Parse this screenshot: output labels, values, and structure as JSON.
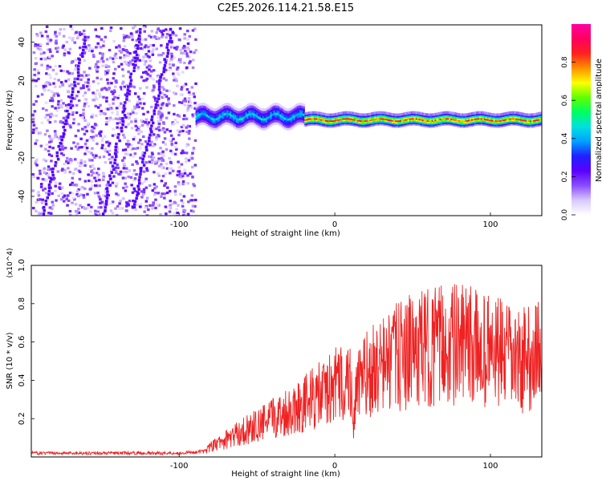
{
  "figure_title": "C2E5.2026.114.21.58.E15",
  "chart_data": [
    {
      "type": "heatmap",
      "title": "C2E5.2026.114.21.58.E15",
      "xlabel": "Height of straight line (km)",
      "ylabel": "Frequency (Hz)",
      "xlim": [
        -195,
        133
      ],
      "ylim": [
        -50,
        49
      ],
      "x_ticks": [
        -100,
        0,
        100
      ],
      "y_ticks": [
        -40,
        -20,
        0,
        20,
        40
      ],
      "colorbar": {
        "label": "Normalized spectral amplitude",
        "range": [
          0,
          1
        ],
        "ticks": [
          0.0,
          0.2,
          0.4,
          0.6,
          0.8
        ],
        "colors": [
          "#ffffff",
          "#d8c8ff",
          "#8a4cff",
          "#5a00ff",
          "#2020ff",
          "#00a0ff",
          "#00e0e0",
          "#00ff60",
          "#60ff00",
          "#ffff00",
          "#ff9000",
          "#ff2020",
          "#ff0060",
          "#ff00a0"
        ]
      },
      "regions": [
        {
          "name": "noise",
          "x_range": [
            -195,
            -90
          ],
          "freq_range": [
            -50,
            49
          ],
          "amplitude": 0.15
        },
        {
          "name": "transition",
          "x_range": [
            -90,
            -20
          ],
          "center_freq": 1.5,
          "half_width_hz": 5,
          "amplitude": 0.5
        },
        {
          "name": "signal",
          "x_range": [
            -20,
            133
          ],
          "center_freq": 0,
          "half_width_hz": 3,
          "amplitude": 0.95
        }
      ]
    },
    {
      "type": "line",
      "xlabel": "Height of straight line (km)",
      "ylabel": "SNR (10 * v/v)",
      "y_multiplier": "(x10^4)",
      "xlim": [
        -195,
        133
      ],
      "ylim": [
        0,
        1.0
      ],
      "x_ticks": [
        -100,
        0,
        100
      ],
      "y_ticks": [
        0.2,
        0.4,
        0.6,
        0.8,
        1.0
      ],
      "series": [
        {
          "name": "SNR",
          "color": "#ee2222",
          "x": [
            -195,
            -180,
            -160,
            -140,
            -120,
            -100,
            -90,
            -85,
            -80,
            -75,
            -70,
            -65,
            -60,
            -55,
            -50,
            -45,
            -40,
            -35,
            -30,
            -25,
            -20,
            -15,
            -10,
            -5,
            0,
            5,
            10,
            12,
            15,
            20,
            25,
            30,
            35,
            40,
            45,
            50,
            55,
            60,
            65,
            70,
            75,
            80,
            85,
            90,
            95,
            100,
            105,
            110,
            115,
            120,
            125,
            130,
            133
          ],
          "values": [
            0.02,
            0.02,
            0.02,
            0.02,
            0.02,
            0.02,
            0.025,
            0.03,
            0.05,
            0.07,
            0.09,
            0.11,
            0.13,
            0.15,
            0.16,
            0.18,
            0.2,
            0.22,
            0.24,
            0.26,
            0.28,
            0.3,
            0.32,
            0.34,
            0.37,
            0.39,
            0.4,
            0.2,
            0.38,
            0.42,
            0.45,
            0.47,
            0.5,
            0.52,
            0.54,
            0.55,
            0.56,
            0.57,
            0.58,
            0.58,
            0.59,
            0.58,
            0.58,
            0.57,
            0.56,
            0.55,
            0.54,
            0.52,
            0.5,
            0.5,
            0.52,
            0.55,
            0.5
          ]
        }
      ]
    }
  ]
}
